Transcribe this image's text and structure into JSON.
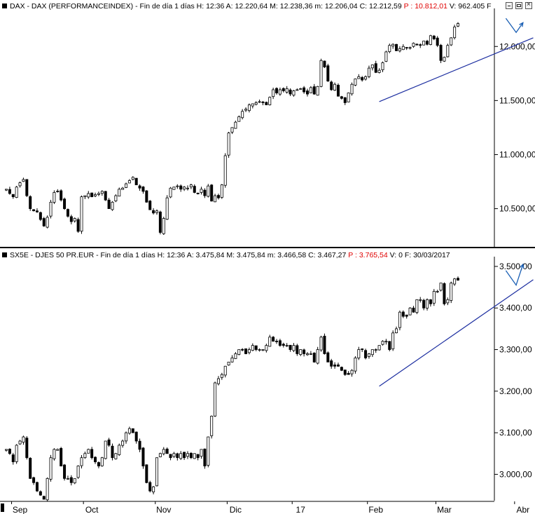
{
  "panels": [
    {
      "header_parts": [
        {
          "text": "DAX - DAX (PERFORMANCEINDEX) - Fin de día 1 días  H: 12:36  A: 12.220,64  M: 12.238,36  m: 12.206,04  C: 12.212,59  ",
          "red": false
        },
        {
          "text": "P : 10.812,01",
          "red": true
        },
        {
          "text": "  V: 962.405  F",
          "red": false
        }
      ]
    },
    {
      "header_parts": [
        {
          "text": "SX5E - DJES 50 PR.EUR - Fin de día 1 días  H: 12:36  A: 3.475,84  M: 3.475,84  m: 3.466,58  C: 3.467,27  ",
          "red": false
        },
        {
          "text": "P : 3.765,54",
          "red": true
        },
        {
          "text": "  V: 0  F: 30/03/2017",
          "red": false
        }
      ]
    }
  ],
  "chart_data": [
    {
      "type": "candlestick",
      "series_name": "DAX",
      "y_ticks": [
        "10.500,00",
        "11.000,00",
        "11.500,00",
        "12.000,00"
      ],
      "y_tick_values": [
        10500,
        11000,
        11500,
        12000
      ],
      "ylim": [
        10160,
        12300
      ],
      "close": [
        10680,
        10640,
        10610,
        10700,
        10740,
        10770,
        10620,
        10500,
        10480,
        10470,
        10400,
        10340,
        10420,
        10560,
        10650,
        10660,
        10580,
        10500,
        10430,
        10380,
        10410,
        10290,
        10610,
        10620,
        10640,
        10610,
        10630,
        10640,
        10660,
        10580,
        10500,
        10560,
        10620,
        10680,
        10690,
        10730,
        10760,
        10790,
        10720,
        10690,
        10660,
        10560,
        10490,
        10460,
        10480,
        10280,
        10410,
        10600,
        10690,
        10700,
        10710,
        10680,
        10700,
        10690,
        10720,
        10650,
        10640,
        10680,
        10620,
        10710,
        10570,
        10620,
        10600,
        10720,
        10990,
        11200,
        11250,
        11300,
        11350,
        11400,
        11420,
        11460,
        11470,
        11480,
        11490,
        11480,
        11460,
        11530,
        11600,
        11570,
        11600,
        11590,
        11610,
        11560,
        11590,
        11600,
        11610,
        11580,
        11560,
        11620,
        11560,
        11630,
        11870,
        11810,
        11680,
        11600,
        11650,
        11540,
        11520,
        11480,
        11570,
        11650,
        11700,
        11720,
        11690,
        11720,
        11800,
        11830,
        11760,
        11780,
        11850,
        11950,
        12010,
        12020,
        11960,
        11980,
        12000,
        11990,
        11990,
        12030,
        12020,
        12010,
        12050,
        12020,
        12100,
        12070,
        12010,
        11870,
        11900,
        12010,
        12080,
        12180,
        12212
      ],
      "x_ticks": [
        {
          "label": "Sep",
          "index": 4
        },
        {
          "label": "Oct",
          "index": 25
        },
        {
          "label": "Nov",
          "index": 46
        },
        {
          "label": "Dic",
          "index": 67
        },
        {
          "label": "17",
          "index": 86
        },
        {
          "label": "Feb",
          "index": 108
        },
        {
          "label": "Mar",
          "index": 128
        },
        {
          "label": "Abr",
          "index": 151
        }
      ],
      "trendline": [
        [
          109,
          11490
        ],
        [
          154,
          12080
        ]
      ],
      "projection": [
        [
          146,
          12260
        ],
        [
          149,
          12130
        ],
        [
          151,
          12220
        ]
      ]
    },
    {
      "type": "candlestick",
      "series_name": "SX5E",
      "y_ticks": [
        "3.000,00",
        "3.100,00",
        "3.200,00",
        "3.300,00",
        "3.400,00",
        "3.500,00"
      ],
      "y_tick_values": [
        3000,
        3100,
        3200,
        3300,
        3400,
        3500
      ],
      "ylim": [
        2940,
        3510
      ],
      "close": [
        3060,
        3050,
        3030,
        3070,
        3080,
        3090,
        3040,
        2990,
        2980,
        2960,
        2950,
        2940,
        2990,
        3040,
        3060,
        3060,
        3020,
        2990,
        2990,
        2980,
        2990,
        3020,
        3040,
        3050,
        3060,
        3040,
        3030,
        3020,
        3040,
        3080,
        3070,
        3040,
        3050,
        3070,
        3080,
        3100,
        3110,
        3100,
        3080,
        3060,
        3020,
        2980,
        2960,
        2970,
        3040,
        3050,
        3060,
        3050,
        3040,
        3050,
        3040,
        3050,
        3040,
        3050,
        3040,
        3050,
        3040,
        3060,
        3020,
        3090,
        3140,
        3220,
        3230,
        3240,
        3260,
        3270,
        3280,
        3290,
        3300,
        3300,
        3290,
        3300,
        3310,
        3300,
        3300,
        3300,
        3310,
        3330,
        3320,
        3320,
        3310,
        3310,
        3310,
        3300,
        3310,
        3290,
        3300,
        3290,
        3290,
        3290,
        3270,
        3300,
        3330,
        3290,
        3270,
        3260,
        3260,
        3260,
        3250,
        3240,
        3240,
        3250,
        3280,
        3300,
        3300,
        3280,
        3290,
        3300,
        3300,
        3310,
        3320,
        3320,
        3300,
        3340,
        3350,
        3390,
        3380,
        3380,
        3400,
        3390,
        3420,
        3420,
        3400,
        3420,
        3410,
        3440,
        3440,
        3460,
        3410,
        3420,
        3460,
        3470,
        3467
      ],
      "x_ticks": [
        {
          "label": "Sep",
          "index": 4
        },
        {
          "label": "Oct",
          "index": 25
        },
        {
          "label": "Nov",
          "index": 46
        },
        {
          "label": "Dic",
          "index": 67
        },
        {
          "label": "17",
          "index": 86
        },
        {
          "label": "Feb",
          "index": 108
        },
        {
          "label": "Mar",
          "index": 128
        },
        {
          "label": "Abr",
          "index": 151
        }
      ],
      "trendline": [
        [
          109,
          3212
        ],
        [
          154,
          3468
        ]
      ],
      "projection": [
        [
          146,
          3490
        ],
        [
          149,
          3455
        ],
        [
          151,
          3505
        ]
      ]
    }
  ],
  "colors": {
    "trendline": "#1c2ea0",
    "projection": "#1a5fb4",
    "divider": "#000000"
  }
}
